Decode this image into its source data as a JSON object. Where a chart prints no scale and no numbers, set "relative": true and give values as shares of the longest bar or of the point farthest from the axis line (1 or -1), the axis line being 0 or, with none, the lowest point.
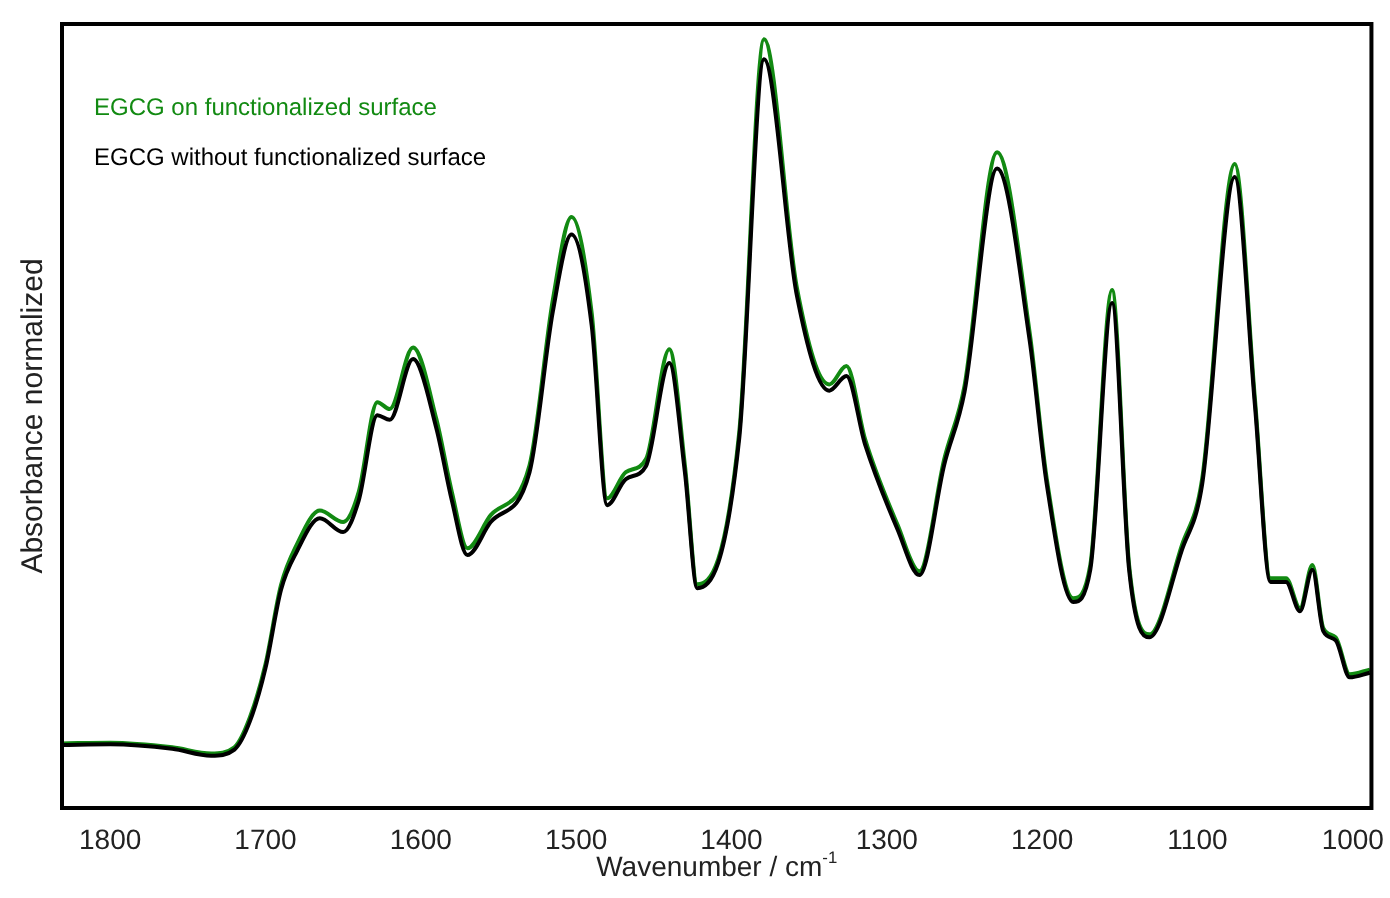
{
  "chart_data": {
    "type": "line",
    "xlabel": "Wavenumber / cm$^{-1}$",
    "ylabel": "Absorbance normalized",
    "relative": true,
    "xlim": [
      1831,
      988
    ],
    "xticks": [
      1800,
      1700,
      1600,
      1500,
      1400,
      1300,
      1200,
      1100,
      1000
    ],
    "grid": false,
    "legend": "top left",
    "marker": "none",
    "line_style": "solid",
    "series": [
      {
        "name": "EGCG on functionalized surface",
        "color": "#128a12",
        "x": [
          1831,
          1800,
          1760,
          1735,
          1720,
          1710,
          1700,
          1690,
          1680,
          1665,
          1650,
          1640,
          1628,
          1620,
          1605,
          1590,
          1580,
          1570,
          1555,
          1530,
          1515,
          1503,
          1490,
          1480,
          1468,
          1455,
          1440,
          1430,
          1422,
          1395,
          1379,
          1358,
          1337,
          1326,
          1314,
          1293,
          1279,
          1263,
          1250,
          1229,
          1208,
          1197,
          1180,
          1169,
          1155,
          1144,
          1131,
          1110,
          1097,
          1076,
          1063,
          1053,
          1043,
          1034,
          1026,
          1019,
          1011,
          1002,
          989
        ],
        "values": [
          0.084,
          0.085,
          0.079,
          0.071,
          0.079,
          0.118,
          0.187,
          0.29,
          0.342,
          0.387,
          0.372,
          0.411,
          0.528,
          0.519,
          0.599,
          0.506,
          0.411,
          0.338,
          0.381,
          0.446,
          0.661,
          0.769,
          0.644,
          0.403,
          0.437,
          0.454,
          0.597,
          0.446,
          0.291,
          0.489,
          1.0,
          0.678,
          0.551,
          0.575,
          0.48,
          0.368,
          0.308,
          0.454,
          0.549,
          0.853,
          0.618,
          0.428,
          0.273,
          0.316,
          0.674,
          0.316,
          0.226,
          0.342,
          0.428,
          0.838,
          0.532,
          0.299,
          0.299,
          0.26,
          0.316,
          0.234,
          0.222,
          0.174,
          0.18
        ]
      },
      {
        "name": "EGCG without functionalized surface",
        "color": "#000000",
        "x": [
          1831,
          1800,
          1760,
          1735,
          1720,
          1710,
          1700,
          1690,
          1680,
          1665,
          1650,
          1640,
          1628,
          1620,
          1605,
          1590,
          1580,
          1570,
          1555,
          1530,
          1515,
          1503,
          1490,
          1480,
          1468,
          1455,
          1440,
          1430,
          1422,
          1395,
          1379,
          1358,
          1337,
          1326,
          1314,
          1293,
          1279,
          1263,
          1250,
          1229,
          1208,
          1197,
          1180,
          1169,
          1155,
          1144,
          1131,
          1110,
          1097,
          1076,
          1063,
          1053,
          1043,
          1034,
          1026,
          1019,
          1011,
          1002,
          989
        ],
        "values": [
          0.082,
          0.083,
          0.077,
          0.068,
          0.076,
          0.113,
          0.182,
          0.284,
          0.333,
          0.377,
          0.359,
          0.4,
          0.511,
          0.505,
          0.584,
          0.494,
          0.4,
          0.329,
          0.372,
          0.437,
          0.646,
          0.746,
          0.628,
          0.394,
          0.428,
          0.445,
          0.579,
          0.437,
          0.286,
          0.481,
          0.974,
          0.668,
          0.543,
          0.562,
          0.473,
          0.362,
          0.303,
          0.447,
          0.541,
          0.832,
          0.608,
          0.421,
          0.268,
          0.31,
          0.657,
          0.31,
          0.222,
          0.336,
          0.421,
          0.821,
          0.524,
          0.294,
          0.294,
          0.256,
          0.31,
          0.23,
          0.218,
          0.17,
          0.176
        ]
      }
    ]
  }
}
